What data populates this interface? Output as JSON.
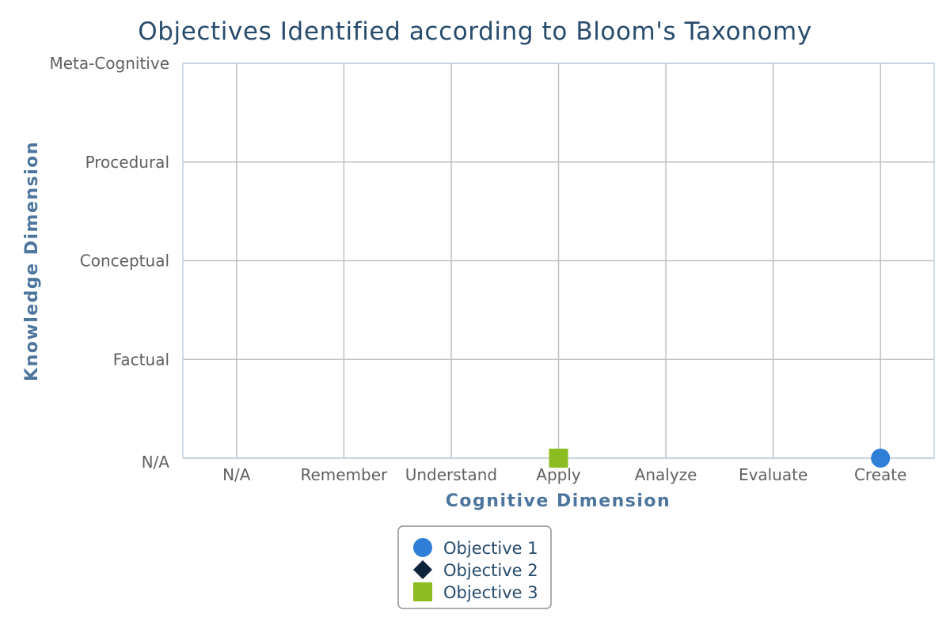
{
  "chart_data": {
    "type": "scatter",
    "title": "Objectives Identified according to Bloom's Taxonomy",
    "xlabel": "Cognitive Dimension",
    "ylabel": "Knowledge Dimension",
    "x_categories": [
      "N/A",
      "Remember",
      "Understand",
      "Apply",
      "Analyze",
      "Evaluate",
      "Create"
    ],
    "y_categories": [
      "N/A",
      "Factual",
      "Conceptual",
      "Procedural",
      "Meta-Cognitive"
    ],
    "grid": true,
    "legend_position": "bottom-center",
    "series": [
      {
        "name": "Objective 1",
        "marker": "circle",
        "color": "#2f7ed8",
        "points": [
          {
            "x": "Create",
            "y": "N/A"
          }
        ]
      },
      {
        "name": "Objective 2",
        "marker": "diamond",
        "color": "#0d233a",
        "points": []
      },
      {
        "name": "Objective 3",
        "marker": "square",
        "color": "#8bbc21",
        "points": [
          {
            "x": "Apply",
            "y": "N/A"
          }
        ]
      }
    ]
  }
}
